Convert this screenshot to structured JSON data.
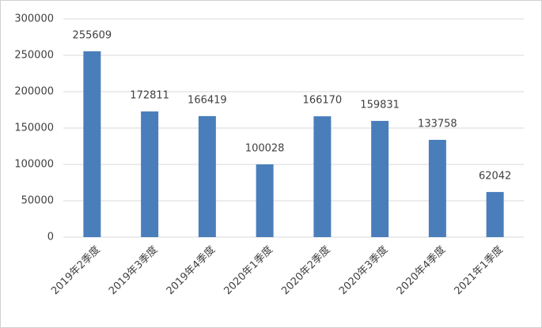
{
  "chart_data": {
    "type": "bar",
    "categories": [
      "2019年2季度",
      "2019年3季度",
      "2019年4季度",
      "2020年1季度",
      "2020年2季度",
      "2020年3季度",
      "2020年4季度",
      "2021年1季度"
    ],
    "values": [
      255609,
      172811,
      166419,
      100028,
      166170,
      159831,
      133758,
      62042
    ],
    "color": "#4a7ebb",
    "ylim": [
      0,
      300000
    ],
    "yticks": [
      0,
      50000,
      100000,
      150000,
      200000,
      250000,
      300000
    ],
    "grid": true
  }
}
